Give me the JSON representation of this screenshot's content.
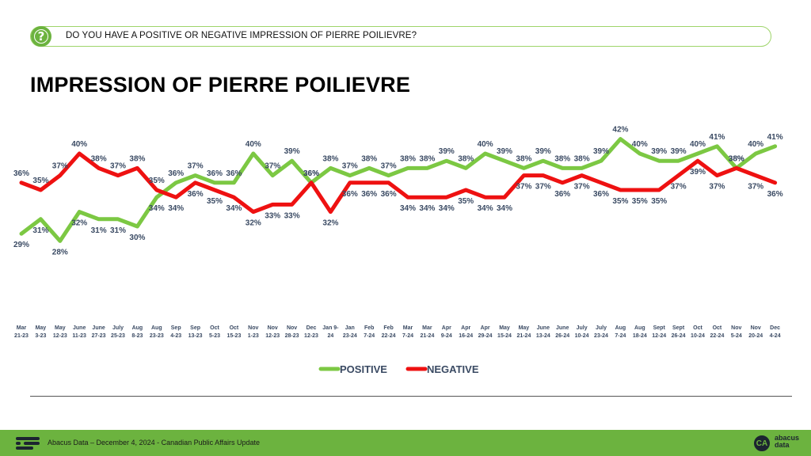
{
  "question": "DO YOU HAVE A POSITIVE OR NEGATIVE IMPRESSION OF PIERRE POILIEVRE?",
  "question_icon": "question-mark-icon",
  "footer": {
    "text": "Abacus Data – December 4, 2024 - Canadian Public Affairs Update",
    "brand_mark": "CA",
    "brand_line1": "abacus",
    "brand_line2": "data"
  },
  "colors": {
    "positive": "#7cc843",
    "negative": "#ee1111",
    "label": "#3a4a63",
    "accent": "#6cb33f"
  },
  "chart_data": {
    "type": "line",
    "title": "IMPRESSION OF PIERRE POILIEVRE",
    "categories": [
      [
        "Mar",
        "21-23"
      ],
      [
        "May",
        "3-23"
      ],
      [
        "May",
        "12-23"
      ],
      [
        "June",
        "11-23"
      ],
      [
        "June",
        "27-23"
      ],
      [
        "July",
        "25-23"
      ],
      [
        "Aug",
        "8-23"
      ],
      [
        "Aug",
        "23-23"
      ],
      [
        "Sep",
        "4-23"
      ],
      [
        "Sep",
        "13-23"
      ],
      [
        "Oct",
        "5-23"
      ],
      [
        "Oct",
        "15-23"
      ],
      [
        "Nov",
        "1-23"
      ],
      [
        "Nov",
        "12-23"
      ],
      [
        "Nov",
        "28-23"
      ],
      [
        "Dec",
        "12-23"
      ],
      [
        "Jan 9-",
        "24"
      ],
      [
        "Jan",
        "23-24"
      ],
      [
        "Feb",
        "7-24"
      ],
      [
        "Feb",
        "22-24"
      ],
      [
        "Mar",
        "7-24"
      ],
      [
        "Mar",
        "21-24"
      ],
      [
        "Apr",
        "9-24"
      ],
      [
        "Apr",
        "16-24"
      ],
      [
        "Apr",
        "29-24"
      ],
      [
        "May",
        "15-24"
      ],
      [
        "May",
        "21-24"
      ],
      [
        "June",
        "13-24"
      ],
      [
        "June",
        "26-24"
      ],
      [
        "July",
        "10-24"
      ],
      [
        "July",
        "23-24"
      ],
      [
        "Aug",
        "7-24"
      ],
      [
        "Aug",
        "18-24"
      ],
      [
        "Sept",
        "12-24"
      ],
      [
        "Sept",
        "26-24"
      ],
      [
        "Oct",
        "10-24"
      ],
      [
        "Oct",
        "22-24"
      ],
      [
        "Nov",
        "5-24"
      ],
      [
        "Nov",
        "20-24"
      ],
      [
        "Dec",
        "4-24"
      ]
    ],
    "series": [
      {
        "name": "POSITIVE",
        "color": "#7cc843",
        "values": [
          29,
          31,
          28,
          32,
          31,
          31,
          30,
          34,
          36,
          37,
          36,
          36,
          40,
          37,
          39,
          36,
          38,
          37,
          38,
          37,
          38,
          38,
          39,
          38,
          40,
          39,
          38,
          39,
          38,
          38,
          39,
          42,
          40,
          39,
          39,
          40,
          41,
          38,
          40,
          41
        ]
      },
      {
        "name": "NEGATIVE",
        "color": "#ee1111",
        "values": [
          36,
          35,
          37,
          40,
          38,
          37,
          38,
          35,
          34,
          36,
          35,
          34,
          32,
          33,
          33,
          36,
          32,
          36,
          36,
          36,
          34,
          34,
          34,
          35,
          34,
          34,
          37,
          37,
          36,
          37,
          36,
          35,
          35,
          35,
          37,
          39,
          37,
          38,
          37,
          36
        ]
      }
    ],
    "ylim": [
      20,
      50
    ],
    "legend_position": "bottom",
    "grid": false
  }
}
